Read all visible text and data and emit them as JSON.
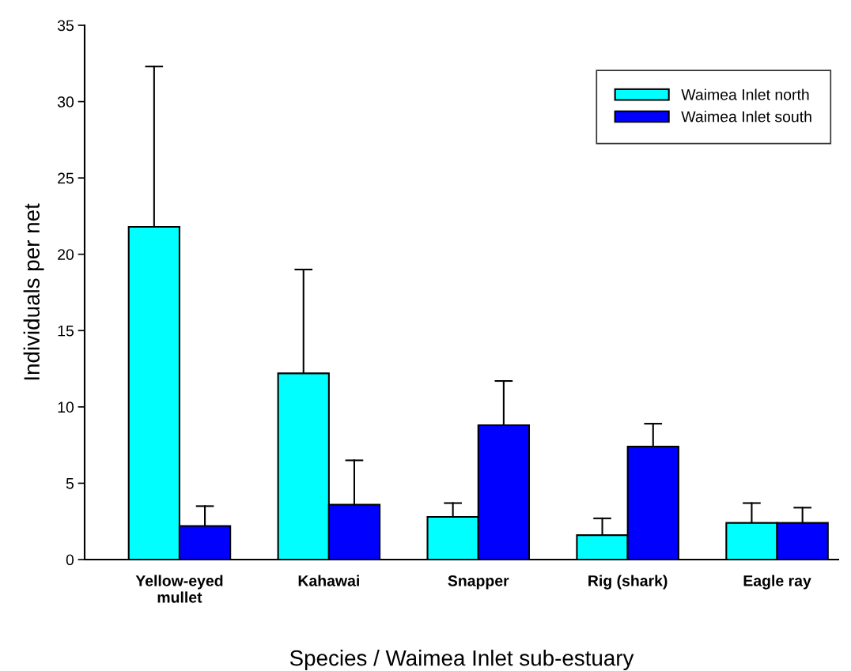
{
  "chart_data": {
    "type": "bar",
    "xlabel": "Species / Waimea Inlet sub-estuary",
    "ylabel": "Individuals per net",
    "categories": [
      "Yellow-eyed\nmullet",
      "Kahawai",
      "Snapper",
      "Rig (shark)",
      "Eagle ray"
    ],
    "series": [
      {
        "name": "Waimea Inlet north",
        "color": "#00ffff",
        "values": [
          21.8,
          12.2,
          2.8,
          1.6,
          2.4
        ],
        "errors": [
          [
            21.8,
            32.3
          ],
          [
            12.2,
            19.0
          ],
          [
            2.8,
            3.7
          ],
          [
            1.6,
            2.7
          ],
          [
            2.4,
            3.7
          ]
        ]
      },
      {
        "name": "Waimea Inlet south",
        "color": "#0000ff",
        "values": [
          2.2,
          3.6,
          8.8,
          7.4,
          2.4
        ],
        "errors": [
          [
            2.2,
            3.5
          ],
          [
            3.6,
            6.5
          ],
          [
            8.8,
            11.7
          ],
          [
            7.4,
            8.9
          ],
          [
            2.4,
            3.4
          ]
        ]
      }
    ],
    "ylim": [
      0,
      35
    ],
    "yticks": [
      0,
      5,
      10,
      15,
      20,
      25,
      30,
      35
    ],
    "grid": false,
    "legend": "top right"
  }
}
